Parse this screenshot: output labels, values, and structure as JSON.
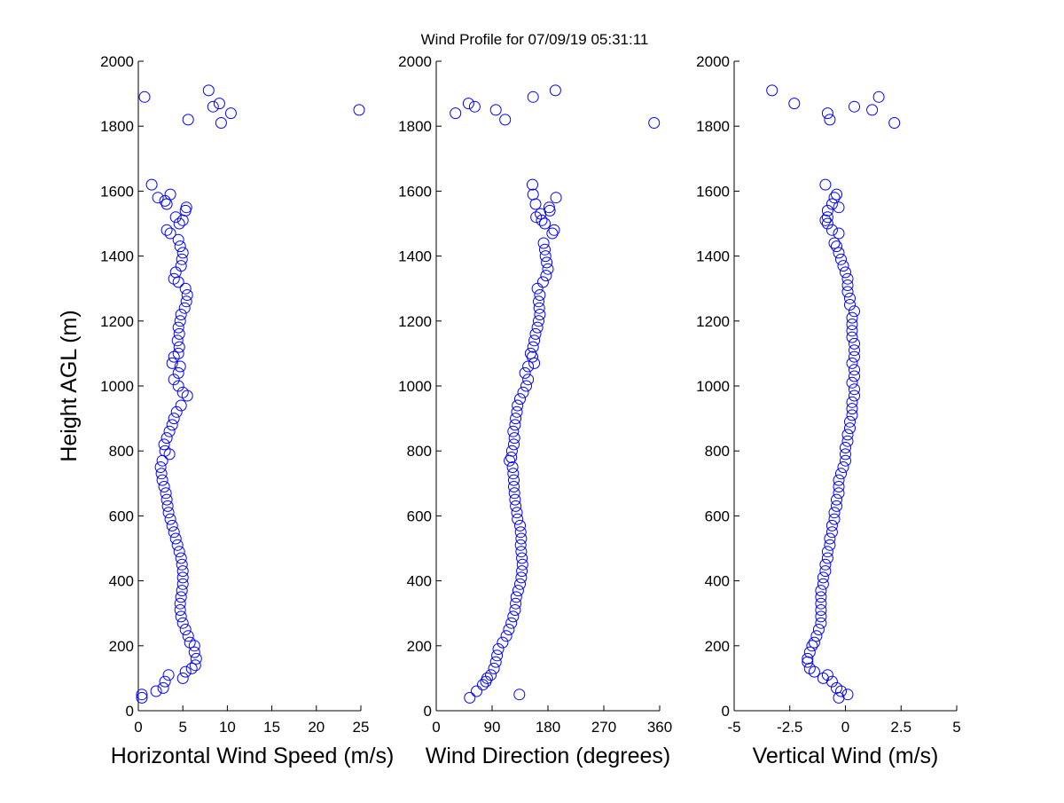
{
  "figure": {
    "title": "Wind Profile for  07/09/19 05:31:11",
    "ylabel": "Height AGL (m)"
  },
  "colors": {
    "marker": "#0000ff",
    "axis": "#000000",
    "background": "#ffffff"
  },
  "chart_data": [
    {
      "type": "scatter",
      "xlabel": "Horizontal Wind Speed (m/s)",
      "ylabel": "Height AGL (m)",
      "xlim": [
        0,
        25
      ],
      "ylim": [
        0,
        2000
      ],
      "xticks": [
        "0",
        "5",
        "10",
        "15",
        "20",
        "25"
      ],
      "xtick_values": [
        0,
        5,
        10,
        15,
        20,
        25
      ],
      "yticks": [
        "0",
        "200",
        "400",
        "600",
        "800",
        "1000",
        "1200",
        "1400",
        "1600",
        "1800",
        "2000"
      ],
      "grid": false,
      "marker": "open-circle",
      "points": [
        [
          0.4,
          40
        ],
        [
          0.4,
          50
        ],
        [
          2.0,
          60
        ],
        [
          2.8,
          70
        ],
        [
          3.0,
          90
        ],
        [
          3.4,
          110
        ],
        [
          5.0,
          100
        ],
        [
          5.3,
          120
        ],
        [
          6.0,
          130
        ],
        [
          6.4,
          140
        ],
        [
          6.5,
          160
        ],
        [
          6.3,
          180
        ],
        [
          6.3,
          200
        ],
        [
          5.8,
          210
        ],
        [
          5.6,
          230
        ],
        [
          5.3,
          250
        ],
        [
          5.0,
          270
        ],
        [
          4.8,
          290
        ],
        [
          4.7,
          310
        ],
        [
          4.7,
          330
        ],
        [
          4.8,
          350
        ],
        [
          4.9,
          370
        ],
        [
          5.0,
          390
        ],
        [
          5.0,
          410
        ],
        [
          5.0,
          430
        ],
        [
          4.9,
          450
        ],
        [
          4.8,
          470
        ],
        [
          4.6,
          490
        ],
        [
          4.4,
          510
        ],
        [
          4.2,
          530
        ],
        [
          4.0,
          550
        ],
        [
          3.8,
          570
        ],
        [
          3.6,
          590
        ],
        [
          3.4,
          610
        ],
        [
          3.3,
          630
        ],
        [
          3.2,
          650
        ],
        [
          3.1,
          670
        ],
        [
          2.9,
          690
        ],
        [
          2.7,
          710
        ],
        [
          2.6,
          730
        ],
        [
          2.5,
          750
        ],
        [
          2.7,
          770
        ],
        [
          3.5,
          790
        ],
        [
          3.0,
          800
        ],
        [
          2.9,
          820
        ],
        [
          3.2,
          840
        ],
        [
          3.5,
          860
        ],
        [
          3.8,
          880
        ],
        [
          4.0,
          900
        ],
        [
          4.3,
          920
        ],
        [
          4.8,
          940
        ],
        [
          5.5,
          970
        ],
        [
          5.0,
          980
        ],
        [
          4.5,
          1000
        ],
        [
          4.0,
          1020
        ],
        [
          4.5,
          1040
        ],
        [
          4.7,
          1060
        ],
        [
          3.8,
          1070
        ],
        [
          4.0,
          1090
        ],
        [
          4.5,
          1100
        ],
        [
          4.6,
          1120
        ],
        [
          4.4,
          1140
        ],
        [
          4.6,
          1160
        ],
        [
          4.5,
          1180
        ],
        [
          4.7,
          1200
        ],
        [
          4.8,
          1220
        ],
        [
          5.2,
          1240
        ],
        [
          5.4,
          1260
        ],
        [
          5.5,
          1280
        ],
        [
          5.3,
          1300
        ],
        [
          4.5,
          1320
        ],
        [
          4.0,
          1330
        ],
        [
          4.2,
          1350
        ],
        [
          4.8,
          1370
        ],
        [
          4.9,
          1390
        ],
        [
          5.0,
          1410
        ],
        [
          4.7,
          1430
        ],
        [
          4.5,
          1450
        ],
        [
          3.6,
          1470
        ],
        [
          3.2,
          1480
        ],
        [
          4.6,
          1500
        ],
        [
          5.0,
          1510
        ],
        [
          4.2,
          1520
        ],
        [
          5.3,
          1540
        ],
        [
          5.4,
          1550
        ],
        [
          3.2,
          1560
        ],
        [
          3.0,
          1570
        ],
        [
          2.2,
          1580
        ],
        [
          3.6,
          1590
        ],
        [
          1.5,
          1620
        ],
        [
          5.6,
          1820
        ],
        [
          9.3,
          1810
        ],
        [
          10.4,
          1840
        ],
        [
          8.4,
          1860
        ],
        [
          9.1,
          1870
        ],
        [
          7.9,
          1910
        ],
        [
          0.7,
          1890
        ],
        [
          24.8,
          1850
        ]
      ]
    },
    {
      "type": "scatter",
      "xlabel": "Wind Direction (degrees)",
      "ylabel": "",
      "xlim": [
        0,
        360
      ],
      "ylim": [
        0,
        2000
      ],
      "xticks": [
        "0",
        "90",
        "180",
        "270",
        "360"
      ],
      "xtick_values": [
        0,
        90,
        180,
        270,
        360
      ],
      "yticks": [
        "0",
        "200",
        "400",
        "600",
        "800",
        "1000",
        "1200",
        "1400",
        "1600",
        "1800",
        "2000"
      ],
      "grid": false,
      "marker": "open-circle",
      "points": [
        [
          54,
          40
        ],
        [
          134,
          50
        ],
        [
          65,
          60
        ],
        [
          75,
          80
        ],
        [
          80,
          90
        ],
        [
          82,
          100
        ],
        [
          88,
          110
        ],
        [
          93,
          130
        ],
        [
          96,
          150
        ],
        [
          98,
          170
        ],
        [
          100,
          190
        ],
        [
          107,
          210
        ],
        [
          113,
          230
        ],
        [
          117,
          250
        ],
        [
          121,
          270
        ],
        [
          124,
          290
        ],
        [
          127,
          310
        ],
        [
          128,
          330
        ],
        [
          129,
          350
        ],
        [
          132,
          370
        ],
        [
          135,
          390
        ],
        [
          137,
          410
        ],
        [
          138,
          430
        ],
        [
          139,
          450
        ],
        [
          138,
          470
        ],
        [
          137,
          490
        ],
        [
          136,
          510
        ],
        [
          137,
          530
        ],
        [
          136,
          550
        ],
        [
          135,
          570
        ],
        [
          131,
          590
        ],
        [
          130,
          610
        ],
        [
          128,
          630
        ],
        [
          127,
          650
        ],
        [
          126,
          670
        ],
        [
          125,
          690
        ],
        [
          125,
          710
        ],
        [
          124,
          730
        ],
        [
          123,
          750
        ],
        [
          118,
          770
        ],
        [
          121,
          780
        ],
        [
          122,
          800
        ],
        [
          125,
          820
        ],
        [
          126,
          840
        ],
        [
          124,
          860
        ],
        [
          127,
          880
        ],
        [
          128,
          900
        ],
        [
          130,
          920
        ],
        [
          131,
          940
        ],
        [
          135,
          960
        ],
        [
          140,
          980
        ],
        [
          145,
          1000
        ],
        [
          148,
          1020
        ],
        [
          143,
          1040
        ],
        [
          148,
          1060
        ],
        [
          158,
          1070
        ],
        [
          155,
          1090
        ],
        [
          152,
          1100
        ],
        [
          156,
          1120
        ],
        [
          158,
          1140
        ],
        [
          160,
          1160
        ],
        [
          163,
          1180
        ],
        [
          165,
          1200
        ],
        [
          167,
          1220
        ],
        [
          166,
          1240
        ],
        [
          165,
          1260
        ],
        [
          167,
          1280
        ],
        [
          163,
          1300
        ],
        [
          172,
          1320
        ],
        [
          177,
          1340
        ],
        [
          180,
          1360
        ],
        [
          178,
          1380
        ],
        [
          176,
          1400
        ],
        [
          175,
          1420
        ],
        [
          173,
          1440
        ],
        [
          187,
          1470
        ],
        [
          190,
          1480
        ],
        [
          175,
          1500
        ],
        [
          170,
          1510
        ],
        [
          161,
          1520
        ],
        [
          168,
          1530
        ],
        [
          183,
          1540
        ],
        [
          182,
          1550
        ],
        [
          160,
          1560
        ],
        [
          193,
          1580
        ],
        [
          156,
          1590
        ],
        [
          155,
          1620
        ],
        [
          31,
          1840
        ],
        [
          52,
          1870
        ],
        [
          62,
          1860
        ],
        [
          96,
          1850
        ],
        [
          111,
          1820
        ],
        [
          156,
          1890
        ],
        [
          192,
          1910
        ],
        [
          351,
          1810
        ]
      ]
    },
    {
      "type": "scatter",
      "xlabel": "Vertical Wind (m/s)",
      "ylabel": "",
      "xlim": [
        -5,
        5
      ],
      "ylim": [
        0,
        2000
      ],
      "xticks": [
        "-5",
        "-2.5",
        "0",
        "2.5",
        "5"
      ],
      "xtick_values": [
        -5,
        -2.5,
        0,
        2.5,
        5
      ],
      "yticks": [
        "0",
        "200",
        "400",
        "600",
        "800",
        "1000",
        "1200",
        "1400",
        "1600",
        "1800",
        "2000"
      ],
      "grid": false,
      "marker": "open-circle",
      "points": [
        [
          0.1,
          50
        ],
        [
          -0.3,
          40
        ],
        [
          -0.2,
          60
        ],
        [
          -0.4,
          70
        ],
        [
          -0.6,
          90
        ],
        [
          -1.0,
          100
        ],
        [
          -0.8,
          110
        ],
        [
          -1.4,
          120
        ],
        [
          -1.6,
          130
        ],
        [
          -1.7,
          150
        ],
        [
          -1.7,
          160
        ],
        [
          -1.6,
          180
        ],
        [
          -1.5,
          200
        ],
        [
          -1.4,
          210
        ],
        [
          -1.3,
          230
        ],
        [
          -1.2,
          250
        ],
        [
          -1.1,
          270
        ],
        [
          -1.1,
          290
        ],
        [
          -1.1,
          310
        ],
        [
          -1.1,
          330
        ],
        [
          -1.1,
          350
        ],
        [
          -1.1,
          370
        ],
        [
          -1.0,
          390
        ],
        [
          -1.0,
          410
        ],
        [
          -0.9,
          430
        ],
        [
          -0.9,
          450
        ],
        [
          -0.8,
          470
        ],
        [
          -0.8,
          490
        ],
        [
          -0.7,
          510
        ],
        [
          -0.7,
          530
        ],
        [
          -0.6,
          550
        ],
        [
          -0.6,
          570
        ],
        [
          -0.5,
          590
        ],
        [
          -0.5,
          610
        ],
        [
          -0.4,
          630
        ],
        [
          -0.4,
          650
        ],
        [
          -0.3,
          670
        ],
        [
          -0.3,
          690
        ],
        [
          -0.3,
          710
        ],
        [
          -0.2,
          730
        ],
        [
          -0.1,
          750
        ],
        [
          0.0,
          770
        ],
        [
          0.0,
          790
        ],
        [
          0.0,
          810
        ],
        [
          0.1,
          830
        ],
        [
          0.1,
          850
        ],
        [
          0.2,
          870
        ],
        [
          0.2,
          890
        ],
        [
          0.3,
          910
        ],
        [
          0.3,
          930
        ],
        [
          0.3,
          950
        ],
        [
          0.4,
          970
        ],
        [
          0.4,
          990
        ],
        [
          0.3,
          1010
        ],
        [
          0.4,
          1030
        ],
        [
          0.4,
          1050
        ],
        [
          0.3,
          1070
        ],
        [
          0.4,
          1090
        ],
        [
          0.4,
          1110
        ],
        [
          0.4,
          1130
        ],
        [
          0.3,
          1150
        ],
        [
          0.3,
          1170
        ],
        [
          0.3,
          1190
        ],
        [
          0.3,
          1210
        ],
        [
          0.4,
          1230
        ],
        [
          0.2,
          1250
        ],
        [
          0.2,
          1270
        ],
        [
          0.1,
          1290
        ],
        [
          0.1,
          1310
        ],
        [
          0.1,
          1330
        ],
        [
          0.0,
          1350
        ],
        [
          -0.1,
          1370
        ],
        [
          -0.2,
          1390
        ],
        [
          -0.3,
          1410
        ],
        [
          -0.4,
          1430
        ],
        [
          -0.5,
          1440
        ],
        [
          -0.3,
          1470
        ],
        [
          -0.6,
          1480
        ],
        [
          -0.8,
          1500
        ],
        [
          -0.9,
          1510
        ],
        [
          -0.8,
          1520
        ],
        [
          -0.8,
          1540
        ],
        [
          -0.3,
          1550
        ],
        [
          -0.6,
          1560
        ],
        [
          -0.5,
          1580
        ],
        [
          -0.4,
          1590
        ],
        [
          -0.9,
          1620
        ],
        [
          -0.7,
          1820
        ],
        [
          -0.8,
          1840
        ],
        [
          -2.3,
          1870
        ],
        [
          -3.3,
          1910
        ],
        [
          0.4,
          1860
        ],
        [
          1.2,
          1850
        ],
        [
          1.5,
          1890
        ],
        [
          2.2,
          1810
        ]
      ]
    }
  ]
}
